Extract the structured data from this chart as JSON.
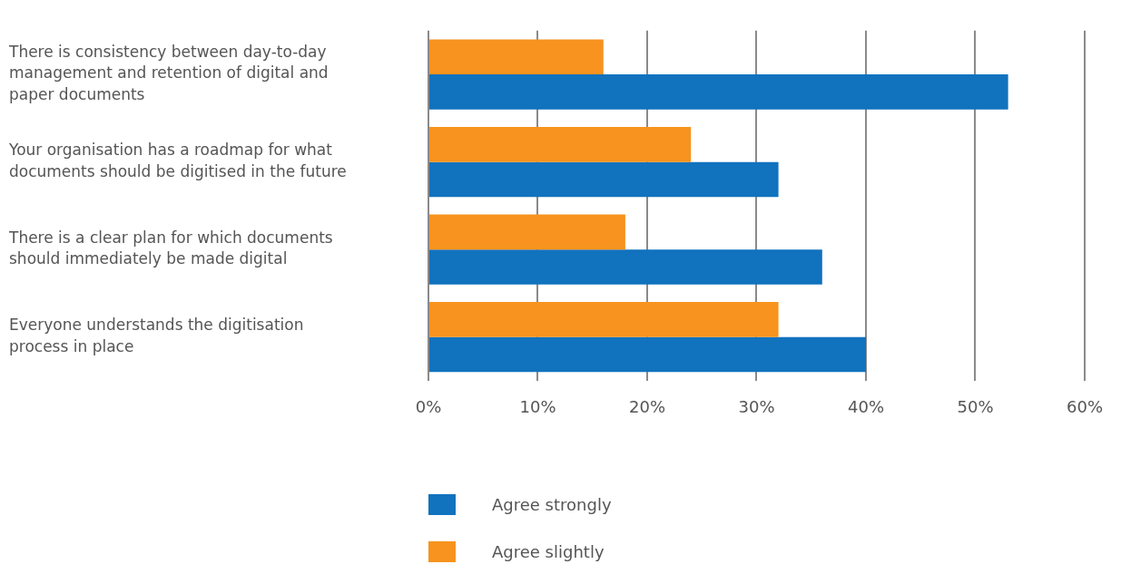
{
  "chart_data": {
    "type": "bar",
    "orientation": "horizontal",
    "categories": [
      "There is consistency between day-to-day management and retention of digital and paper documents",
      "Your organisation has a roadmap for what documents should be digitised in the future",
      "There is a clear plan for which documents should immediately be made digital",
      "Everyone understands the digitisation process in place"
    ],
    "series": [
      {
        "name": "Agree strongly",
        "color": "#1172be",
        "values": [
          53,
          32,
          36,
          40
        ]
      },
      {
        "name": "Agree slightly",
        "color": "#f7931e",
        "values": [
          16,
          24,
          18,
          32
        ]
      }
    ],
    "xlim": [
      0,
      60
    ],
    "xticks": [
      {
        "value": 0,
        "label": "0%"
      },
      {
        "value": 10,
        "label": "10%"
      },
      {
        "value": 20,
        "label": "20%"
      },
      {
        "value": 30,
        "label": "30%"
      },
      {
        "value": 40,
        "label": "40%"
      },
      {
        "value": 50,
        "label": "50%"
      },
      {
        "value": 60,
        "label": "60%"
      }
    ],
    "grid": "x",
    "legend": "bottom"
  }
}
